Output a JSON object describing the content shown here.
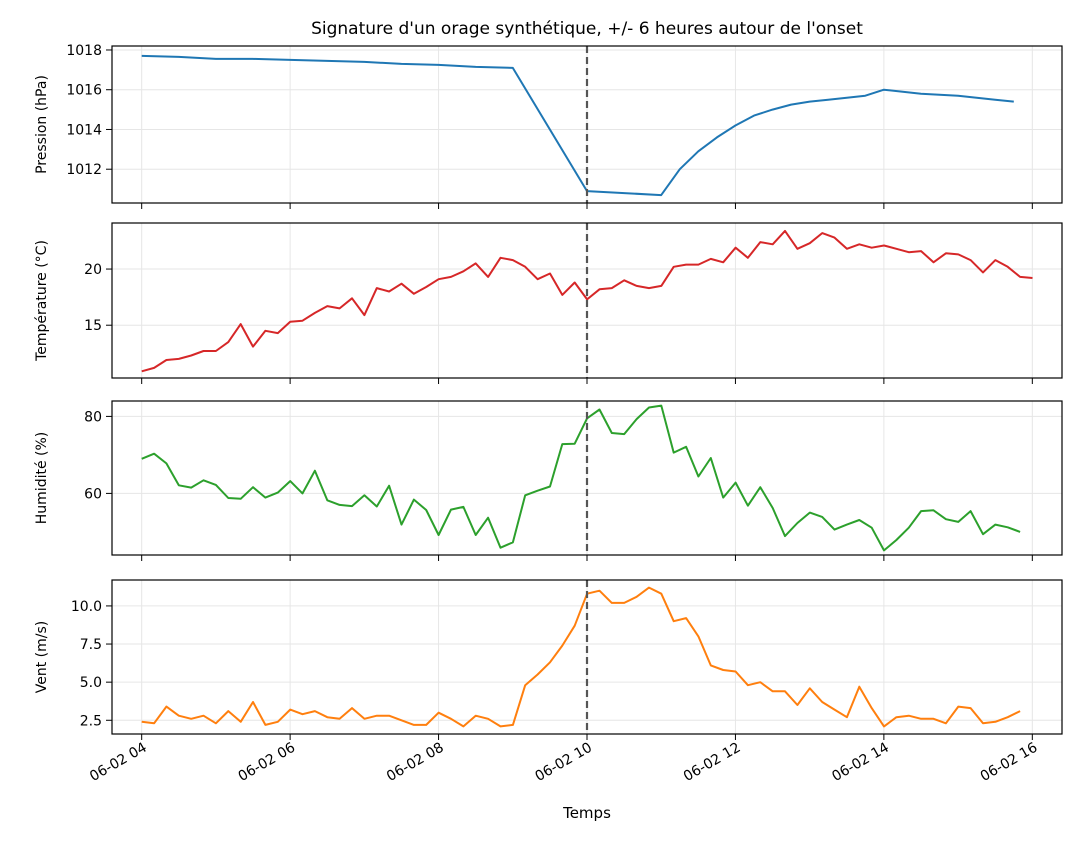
{
  "chart_data": {
    "type": "line",
    "title": "Signature d'un orage synthétique, +/- 6 heures autour de l'onset",
    "xlabel": "Temps",
    "x_tick_labels": [
      "06-02 04",
      "06-02 06",
      "06-02 08",
      "06-02 10",
      "06-02 12",
      "06-02 14",
      "06-02 16"
    ],
    "x_unit": "hours since 06-02 00:00",
    "xlim": [
      3.6,
      16.4
    ],
    "onset": 10.0,
    "grid": true,
    "panels": [
      {
        "ylabel": "Pression (hPa)",
        "color": "#1f77b4",
        "ylim": [
          1010.3,
          1018.2
        ],
        "yticks": [
          1012,
          1014,
          1016,
          1018
        ],
        "ytick_labels": [
          "1012",
          "1014",
          "1016",
          "1018"
        ],
        "x": [
          4.0,
          4.5,
          5.0,
          5.5,
          6.0,
          6.5,
          7.0,
          7.5,
          8.0,
          8.5,
          9.0,
          10.0,
          11.0,
          11.25,
          11.5,
          11.75,
          12.0,
          12.25,
          12.5,
          12.75,
          13.0,
          13.25,
          13.5,
          13.75,
          14.0,
          14.5,
          15.0,
          15.5,
          15.75
        ],
        "values": [
          1017.7,
          1017.65,
          1017.55,
          1017.55,
          1017.5,
          1017.45,
          1017.4,
          1017.3,
          1017.25,
          1017.15,
          1017.1,
          1010.9,
          1010.7,
          1012.0,
          1012.9,
          1013.6,
          1014.2,
          1014.7,
          1015.0,
          1015.25,
          1015.4,
          1015.5,
          1015.6,
          1015.7,
          1016.0,
          1015.8,
          1015.7,
          1015.5,
          1015.4
        ]
      },
      {
        "ylabel": "Température (°C)",
        "color": "#d62728",
        "ylim": [
          10.3,
          24.1
        ],
        "yticks": [
          15,
          20
        ],
        "ytick_labels": [
          "15",
          "20"
        ],
        "x_start": 4.0,
        "x_step": 0.1667,
        "values": [
          10.9,
          11.2,
          11.9,
          12.0,
          12.3,
          12.7,
          12.7,
          13.5,
          15.1,
          13.1,
          14.5,
          14.3,
          15.3,
          15.4,
          16.1,
          16.7,
          16.5,
          17.4,
          15.9,
          18.3,
          18.0,
          18.7,
          17.8,
          18.4,
          19.1,
          19.3,
          19.8,
          20.5,
          19.3,
          21.0,
          20.8,
          20.2,
          19.1,
          19.6,
          17.7,
          18.8,
          17.3,
          18.2,
          18.3,
          19.0,
          18.5,
          18.3,
          18.5,
          20.2,
          20.4,
          20.4,
          20.9,
          20.6,
          21.9,
          21.0,
          22.4,
          22.2,
          23.4,
          21.8,
          22.3,
          23.2,
          22.8,
          21.8,
          22.2,
          21.9,
          22.1,
          21.8,
          21.5,
          21.6,
          20.6,
          21.4,
          21.3,
          20.8,
          19.7,
          20.8,
          20.2,
          19.3,
          19.2
        ]
      },
      {
        "ylabel": "Humidité (%)",
        "color": "#2ca02c",
        "ylim": [
          44,
          84
        ],
        "yticks": [
          60,
          80
        ],
        "ytick_labels": [
          "60",
          "80"
        ],
        "x_start": 4.0,
        "x_step": 0.1667,
        "values": [
          69,
          70.3,
          67.8,
          62.1,
          61.5,
          63.4,
          62.2,
          58.8,
          58.6,
          61.6,
          58.9,
          60.2,
          63.2,
          60.0,
          65.9,
          58.2,
          57.0,
          56.7,
          59.5,
          56.6,
          62.0,
          51.9,
          58.4,
          55.7,
          49.2,
          55.8,
          56.5,
          49.2,
          53.7,
          45.9,
          47.3,
          59.5,
          60.7,
          61.8,
          72.8,
          72.9,
          79.5,
          81.8,
          75.7,
          75.4,
          79.3,
          82.3,
          82.8,
          70.6,
          72.1,
          64.4,
          69.2,
          58.9,
          62.8,
          56.8,
          61.6,
          56.2,
          48.9,
          52.3,
          55.0,
          53.9,
          50.6,
          51.9,
          53.1,
          51.1,
          45.2,
          47.9,
          51.1,
          55.4,
          55.6,
          53.3,
          52.6,
          55.4,
          49.4,
          51.9,
          51.2,
          50.0
        ]
      },
      {
        "ylabel": "Vent (m/s)",
        "color": "#ff7f0e",
        "ylim": [
          1.6,
          11.7
        ],
        "yticks": [
          2.5,
          5.0,
          7.5,
          10.0
        ],
        "ytick_labels": [
          "2.5",
          "5.0",
          "7.5",
          "10.0"
        ],
        "x_start": 4.0,
        "x_step": 0.1667,
        "values": [
          2.4,
          2.3,
          3.4,
          2.8,
          2.6,
          2.8,
          2.3,
          3.1,
          2.4,
          3.7,
          2.2,
          2.4,
          3.2,
          2.9,
          3.1,
          2.7,
          2.6,
          3.3,
          2.6,
          2.8,
          2.8,
          2.5,
          2.2,
          2.2,
          3.0,
          2.6,
          2.1,
          2.8,
          2.6,
          2.1,
          2.2,
          4.8,
          5.5,
          6.3,
          7.4,
          8.7,
          10.8,
          11.0,
          10.2,
          10.2,
          10.6,
          11.2,
          10.8,
          9.0,
          9.2,
          8.0,
          6.1,
          5.8,
          5.7,
          4.8,
          5.0,
          4.4,
          4.4,
          3.5,
          4.6,
          3.7,
          3.2,
          2.7,
          4.7,
          3.3,
          2.1,
          2.7,
          2.8,
          2.6,
          2.6,
          2.3,
          3.4,
          3.3,
          2.3,
          2.4,
          2.7,
          3.1
        ]
      }
    ]
  }
}
